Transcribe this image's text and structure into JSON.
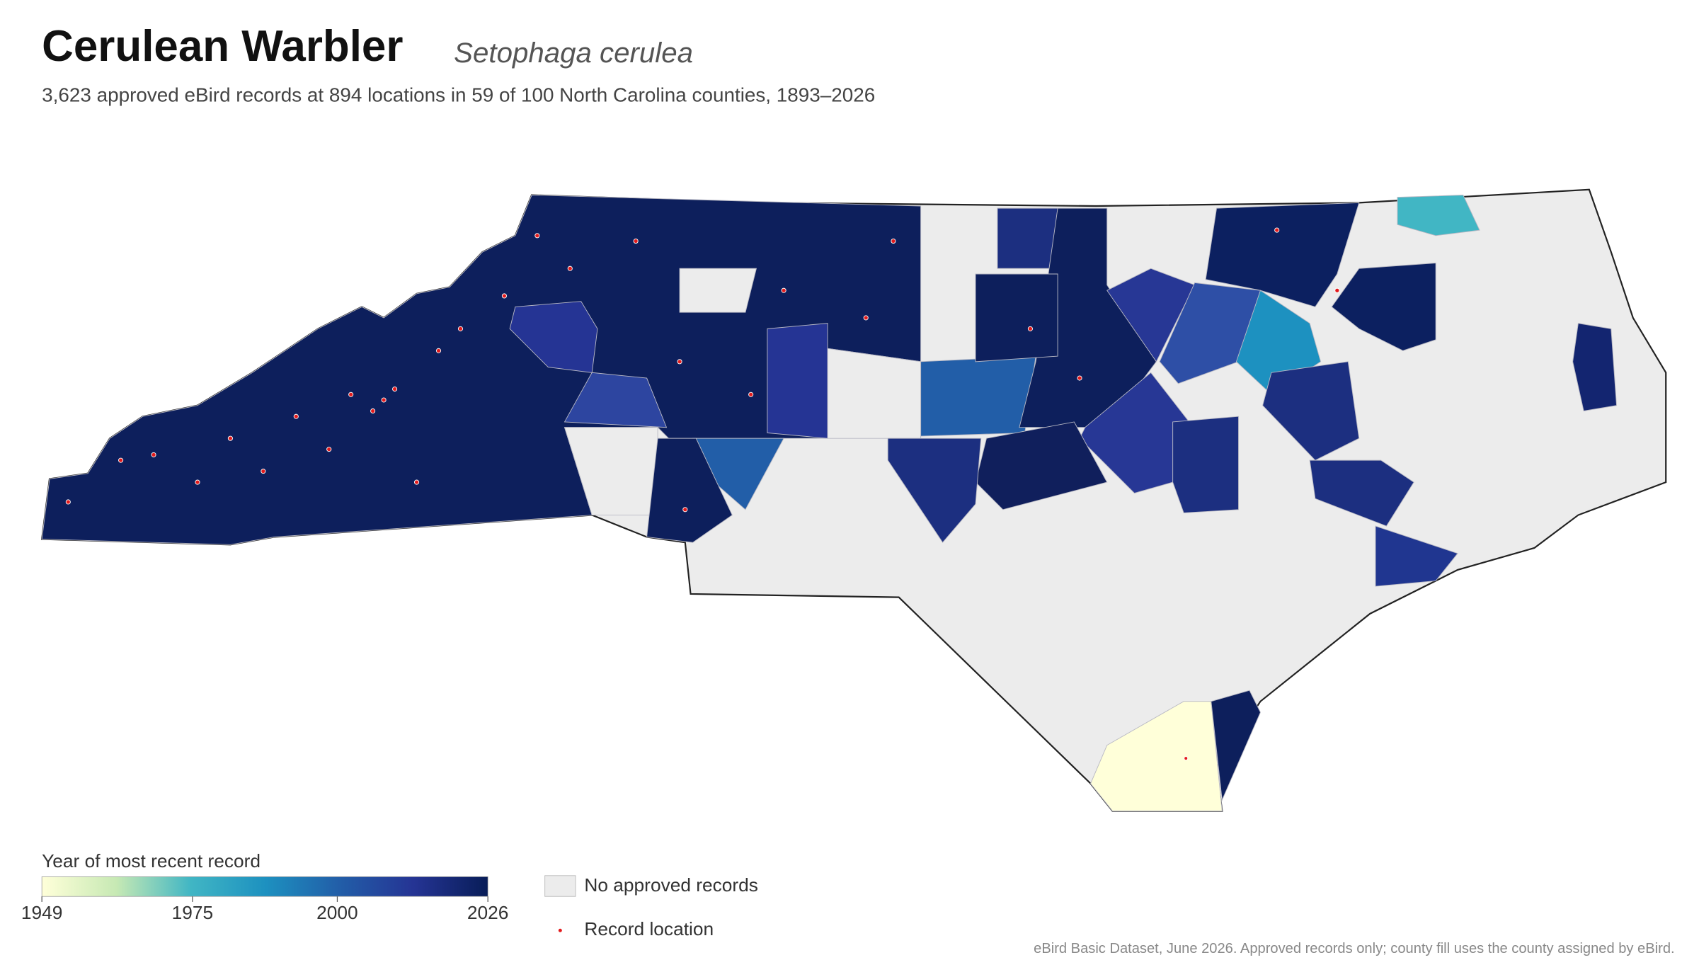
{
  "header": {
    "title": "Cerulean Warbler",
    "species": "Setophaga cerulea",
    "subtitle": "3,623 approved eBird records at 894 locations in 59 of 100 North Carolina counties, 1893–2026"
  },
  "legend": {
    "colorbar": {
      "title": "Year of most recent record",
      "lim": [
        1949,
        2026
      ],
      "ticks": [
        1949,
        1975,
        2000,
        2026
      ],
      "colors": [
        "#ffffd9",
        "#c7e9b4",
        "#41b6c4",
        "#1d91c0",
        "#225ea8",
        "#253494",
        "#081d58"
      ]
    },
    "items": [
      {
        "label": "No approved records",
        "color": "#ececec"
      },
      {
        "label": "Record location",
        "color": "#e31a1c"
      }
    ]
  },
  "source": "eBird Basic Dataset, June 2026. Approved records only; county fill uses the county assigned by eBird."
}
